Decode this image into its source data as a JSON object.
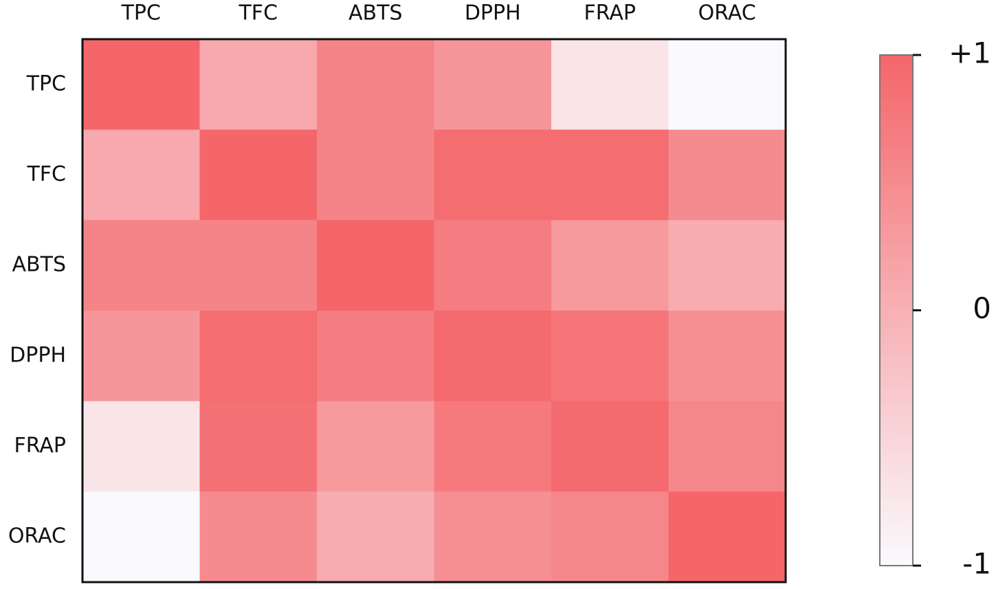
{
  "chart_data": {
    "type": "heatmap",
    "x_categories": [
      "TPC",
      "TFC",
      "ABTS",
      "DPPH",
      "FRAP",
      "ORAC"
    ],
    "y_categories": [
      "TPC",
      "TFC",
      "ABTS",
      "DPPH",
      "FRAP",
      "ORAC"
    ],
    "values": [
      [
        1,
        0.1,
        0.6,
        0.35,
        -0.7,
        -1
      ],
      [
        0.1,
        1,
        0.6,
        0.9,
        0.9,
        0.5
      ],
      [
        0.6,
        0.6,
        1,
        0.7,
        0.3,
        0.05
      ],
      [
        0.35,
        0.9,
        0.7,
        0.95,
        0.8,
        0.45
      ],
      [
        -0.7,
        0.85,
        0.3,
        0.75,
        0.95,
        0.55
      ],
      [
        -1,
        0.5,
        0.05,
        0.45,
        0.55,
        1
      ]
    ],
    "colormap": [
      "#fafafe",
      "#f4666a"
    ],
    "zlim": [
      -1,
      1
    ],
    "zticks": [
      {
        "value": 1,
        "label": "+1"
      },
      0,
      -1
    ]
  }
}
